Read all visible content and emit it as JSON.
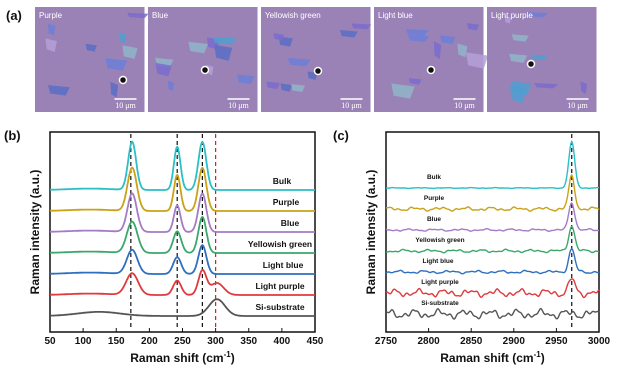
{
  "figure": {
    "panel_a": {
      "label": "(a)",
      "images": [
        {
          "name": "Purple",
          "scale": "10 μm"
        },
        {
          "name": "Blue",
          "scale": "10 μm"
        },
        {
          "name": "Yellowish green",
          "scale": "10 μm"
        },
        {
          "name": "Light blue",
          "scale": "10 μm"
        },
        {
          "name": "Light purple",
          "scale": "10 μm"
        }
      ]
    },
    "panel_b": {
      "label": "(b)"
    },
    "panel_c": {
      "label": "(c)"
    }
  },
  "colors": {
    "Bulk": "#2bbfc6",
    "Purple": "#c9a218",
    "Blue": "#a47bc7",
    "Yellowish green": "#3aa86b",
    "Light blue": "#2f6fbf",
    "Light purple": "#e0393e",
    "Si-substrate": "#555555",
    "ref_black": "#111111",
    "ref_red": "#d62020"
  },
  "chart_data": [
    {
      "type": "line",
      "panel": "b",
      "xlabel_main": "Raman shift (cm",
      "xlabel_sup": "-1",
      "xlabel_end": ")",
      "ylabel": "Raman intensity (a.u.)",
      "xlim": [
        50,
        450
      ],
      "xticks": [
        "50",
        "100",
        "150",
        "200",
        "250",
        "300",
        "350",
        "400",
        "450"
      ],
      "xtick_values": [
        50,
        100,
        150,
        200,
        250,
        300,
        350,
        400,
        450
      ],
      "reference_lines": [
        {
          "x": 172,
          "style": "dashed",
          "color": "black"
        },
        {
          "x": 242,
          "style": "dashed",
          "color": "black"
        },
        {
          "x": 280,
          "style": "dashed",
          "color": "black"
        },
        {
          "x": 300,
          "style": "dashed",
          "color": "red"
        }
      ],
      "series": [
        {
          "name": "Bulk",
          "peaks": [
            [
              174,
              1.0,
              6
            ],
            [
              242,
              0.9,
              5
            ],
            [
              280,
              1.0,
              6
            ]
          ]
        },
        {
          "name": "Purple",
          "peaks": [
            [
              174,
              0.9,
              7
            ],
            [
              242,
              0.75,
              5
            ],
            [
              280,
              0.9,
              6
            ]
          ]
        },
        {
          "name": "Blue",
          "peaks": [
            [
              174,
              0.8,
              7
            ],
            [
              242,
              0.55,
              5
            ],
            [
              280,
              0.8,
              6
            ]
          ]
        },
        {
          "name": "Yellowish green",
          "peaks": [
            [
              174,
              0.65,
              8
            ],
            [
              242,
              0.45,
              6
            ],
            [
              280,
              0.75,
              6
            ]
          ]
        },
        {
          "name": "Light blue",
          "peaks": [
            [
              174,
              0.5,
              8
            ],
            [
              242,
              0.35,
              6
            ],
            [
              280,
              0.6,
              6
            ]
          ]
        },
        {
          "name": "Light purple",
          "peaks": [
            [
              174,
              0.45,
              9
            ],
            [
              242,
              0.3,
              6
            ],
            [
              280,
              0.5,
              6
            ],
            [
              302,
              0.25,
              10
            ]
          ]
        },
        {
          "name": "Si-substrate",
          "peaks": [
            [
              130,
              0.06,
              30
            ],
            [
              302,
              0.35,
              12
            ]
          ]
        }
      ]
    },
    {
      "type": "line",
      "panel": "c",
      "xlabel_main": "Raman shift (cm",
      "xlabel_sup": "-1",
      "xlabel_end": ")",
      "ylabel": "Raman intensity (a.u.)",
      "xlim": [
        2750,
        3000
      ],
      "xticks": [
        "2750",
        "2800",
        "2850",
        "2900",
        "2950",
        "3000"
      ],
      "xtick_values": [
        2750,
        2800,
        2850,
        2900,
        2950,
        3000
      ],
      "reference_lines": [
        {
          "x": 2968,
          "style": "dashed",
          "color": "black"
        }
      ],
      "series": [
        {
          "name": "Bulk",
          "peak": 2968,
          "height": 1.0,
          "noise": 0.05
        },
        {
          "name": "Purple",
          "peak": 2968,
          "height": 0.7,
          "noise": 0.25
        },
        {
          "name": "Blue",
          "peak": 2968,
          "height": 0.6,
          "noise": 0.15
        },
        {
          "name": "Yellowish green",
          "peak": 2968,
          "height": 0.55,
          "noise": 0.2
        },
        {
          "name": "Light blue",
          "peak": 2968,
          "height": 0.5,
          "noise": 0.2
        },
        {
          "name": "Light purple",
          "peak": 2968,
          "height": 0.3,
          "noise": 0.5
        },
        {
          "name": "Si-substrate",
          "peak": 2968,
          "height": 0.0,
          "noise": 0.6
        }
      ]
    }
  ]
}
